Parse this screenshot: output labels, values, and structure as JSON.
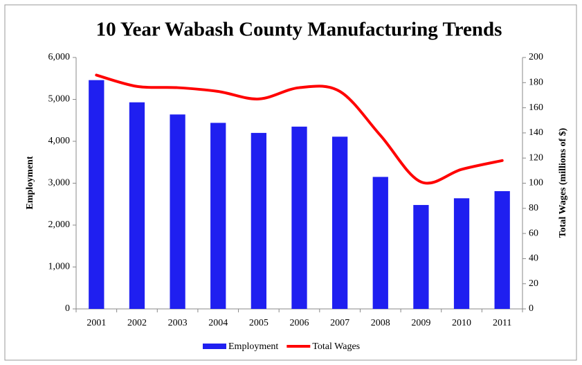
{
  "chart_data": {
    "type": "bar",
    "title": "10 Year Wabash County Manufacturing Trends",
    "y_label": "Employment",
    "y2_label": "Total Wages (millions of $)",
    "categories": [
      "2001",
      "2002",
      "2003",
      "2004",
      "2005",
      "2006",
      "2007",
      "2008",
      "2009",
      "2010",
      "2011"
    ],
    "series": [
      {
        "name": "Employment",
        "type": "bar",
        "color": "#1f1ff0",
        "values": [
          5460,
          4930,
          4640,
          4440,
          4200,
          4350,
          4110,
          3150,
          2480,
          2640,
          2810
        ]
      },
      {
        "name": "Total Wages",
        "type": "line",
        "axis": "y2",
        "color": "#ff0000",
        "smooth": true,
        "values": [
          186,
          177,
          176,
          173,
          167,
          176,
          173,
          138,
          101,
          111,
          118
        ]
      }
    ],
    "ylim": [
      0,
      6000
    ],
    "yticks": [
      0,
      {
        "value": 1000,
        "label": "1,000"
      },
      {
        "value": 2000,
        "label": "2,000"
      },
      {
        "value": 3000,
        "label": "3,000"
      },
      {
        "value": 4000,
        "label": "4,000"
      },
      {
        "value": 5000,
        "label": "5,000"
      },
      {
        "value": 6000,
        "label": "6,000"
      }
    ],
    "y2lim": [
      0,
      200
    ],
    "y2ticks": [
      0,
      20,
      40,
      60,
      80,
      100,
      120,
      140,
      160,
      180,
      200
    ],
    "grid": false,
    "legend": "bottom"
  }
}
